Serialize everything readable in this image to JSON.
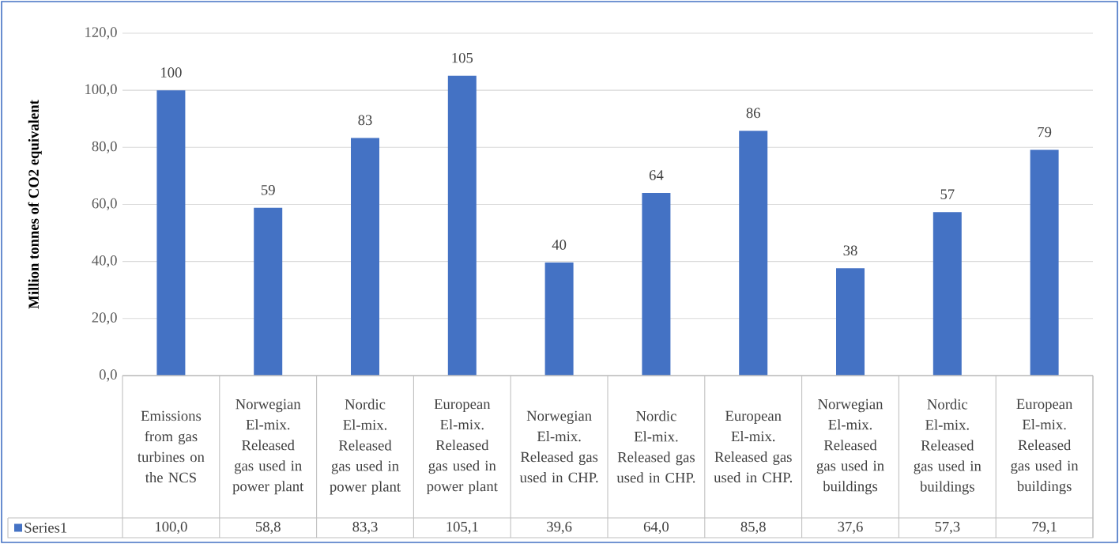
{
  "chart_data": {
    "type": "bar",
    "ylabel": "Million tonnes of CO2 equivalent",
    "categories": [
      "Emissions from gas turbines on the NCS",
      "Norwegian El-mix. Released gas used in power plant",
      "Nordic El-mix. Released gas used in power plant",
      "European El-mix. Released gas used in power plant",
      "Norwegian El-mix. Released gas used in CHP.",
      "Nordic El-mix. Released gas used in CHP.",
      "European El-mix. Released gas used in CHP.",
      "Norwegian El-mix. Released gas used in buildings",
      "Nordic El-mix. Released gas used in buildings",
      "European El-mix. Released gas used in buildings"
    ],
    "series": [
      {
        "name": "Series1",
        "color": "#4472c4",
        "values": [
          100.0,
          58.8,
          83.3,
          105.1,
          39.6,
          64.0,
          85.8,
          37.6,
          57.3,
          79.1
        ]
      }
    ],
    "value_labels": [
      "100,0",
      "58,8",
      "83,3",
      "105,1",
      "39,6",
      "64,0",
      "85,8",
      "37,6",
      "57,3",
      "79,1"
    ],
    "annotations": [
      {
        "text": "100",
        "x": "Emissions from gas turbines on the NCS",
        "y": 100.0
      },
      {
        "text": "59",
        "x": "Norwegian El-mix. Released gas used in power plant",
        "y": 58.8
      },
      {
        "text": "83",
        "x": "Nordic El-mix. Released gas used in power plant",
        "y": 83.3
      },
      {
        "text": "105",
        "x": "European El-mix. Released gas used in power plant",
        "y": 105.1
      },
      {
        "text": "40",
        "x": "Norwegian El-mix. Released gas used in CHP.",
        "y": 39.6
      },
      {
        "text": "64",
        "x": "Nordic El-mix. Released gas used in CHP.",
        "y": 64.0
      },
      {
        "text": "86",
        "x": "European El-mix. Released gas used in CHP.",
        "y": 85.8
      },
      {
        "text": "38",
        "x": "Norwegian El-mix. Released gas used in buildings",
        "y": 37.6
      },
      {
        "text": "57",
        "x": "Nordic El-mix. Released gas used in buildings",
        "y": 57.3
      },
      {
        "text": "79",
        "x": "European El-mix. Released gas used in buildings",
        "y": 79.1
      }
    ],
    "ylim": [
      0,
      120
    ],
    "yticks": [
      {
        "value": 0,
        "label": "0,0"
      },
      {
        "value": 20,
        "label": "20,0"
      },
      {
        "value": 40,
        "label": "40,0"
      },
      {
        "value": 60,
        "label": "60,0"
      },
      {
        "value": 80,
        "label": "80,0"
      },
      {
        "value": 100,
        "label": "100,0"
      },
      {
        "value": 120,
        "label": "120,0"
      }
    ],
    "grid": "y",
    "legend": "bottom"
  }
}
